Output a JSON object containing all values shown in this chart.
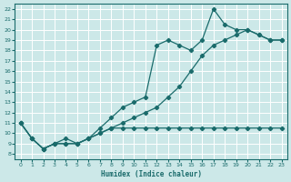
{
  "xlabel": "Humidex (Indice chaleur)",
  "bg_color": "#cce8e8",
  "line_color": "#1a6b6b",
  "grid_color": "#ffffff",
  "xlim": [
    -0.5,
    23.5
  ],
  "ylim": [
    7.5,
    22.5
  ],
  "xticks": [
    0,
    1,
    2,
    3,
    4,
    5,
    6,
    7,
    8,
    9,
    10,
    11,
    12,
    13,
    14,
    15,
    16,
    17,
    18,
    19,
    20,
    21,
    22,
    23
  ],
  "yticks": [
    8,
    9,
    10,
    11,
    12,
    13,
    14,
    15,
    16,
    17,
    18,
    19,
    20,
    21,
    22
  ],
  "line1_x": [
    0,
    1,
    2,
    3,
    4,
    5,
    6,
    7,
    8,
    9,
    10,
    11,
    12,
    13,
    14,
    15,
    16,
    17,
    18,
    19,
    20,
    21,
    22,
    23
  ],
  "line1_y": [
    11,
    9.5,
    8.5,
    9,
    9.5,
    9,
    9.5,
    10,
    10.5,
    10.5,
    10.5,
    10.5,
    10.5,
    10.5,
    10.5,
    10.5,
    10.5,
    10.5,
    10.5,
    10.5,
    10.5,
    10.5,
    10.5,
    10.5
  ],
  "line2_x": [
    0,
    1,
    2,
    3,
    4,
    5,
    6,
    7,
    8,
    9,
    10,
    11,
    12,
    13,
    14,
    15,
    16,
    17,
    18,
    19,
    20,
    21,
    22,
    23
  ],
  "line2_y": [
    11,
    9.5,
    8.5,
    9,
    9.0,
    9.0,
    9.5,
    10.0,
    10.5,
    11.0,
    11.5,
    12.0,
    12.5,
    13.5,
    14.5,
    16.0,
    17.5,
    18.5,
    19.0,
    19.5,
    20.0,
    19.5,
    19.0,
    19.0
  ],
  "line3_x": [
    0,
    1,
    2,
    3,
    4,
    5,
    6,
    7,
    8,
    9,
    10,
    11,
    12,
    13,
    14,
    15,
    16,
    17,
    18,
    19,
    20,
    21,
    22,
    23
  ],
  "line3_y": [
    11,
    9.5,
    8.5,
    9.0,
    9.0,
    9.0,
    9.5,
    10.5,
    11.5,
    12.5,
    13.0,
    13.5,
    18.5,
    19.0,
    18.5,
    18.0,
    19.0,
    22.0,
    20.5,
    20.0,
    20.0,
    19.5,
    19.0,
    19.0
  ]
}
